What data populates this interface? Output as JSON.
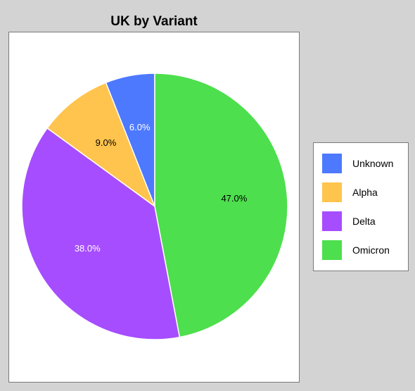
{
  "chart_data": {
    "type": "pie",
    "title": "UK by Variant",
    "slices": [
      {
        "name": "Unknown",
        "value": 6.0,
        "label": "6.0%",
        "color": "#4d79ff",
        "label_color": "#ffffff"
      },
      {
        "name": "Alpha",
        "value": 9.0,
        "label": "9.0%",
        "color": "#ffc44d",
        "label_color": "#000000"
      },
      {
        "name": "Delta",
        "value": 38.0,
        "label": "38.0%",
        "color": "#a64dff",
        "label_color": "#ffffff"
      },
      {
        "name": "Omicron",
        "value": 47.0,
        "label": "47.0%",
        "color": "#4ddf4d",
        "label_color": "#000000"
      }
    ],
    "legend_placement": "right",
    "direction": "counterclockwise-from-top"
  }
}
